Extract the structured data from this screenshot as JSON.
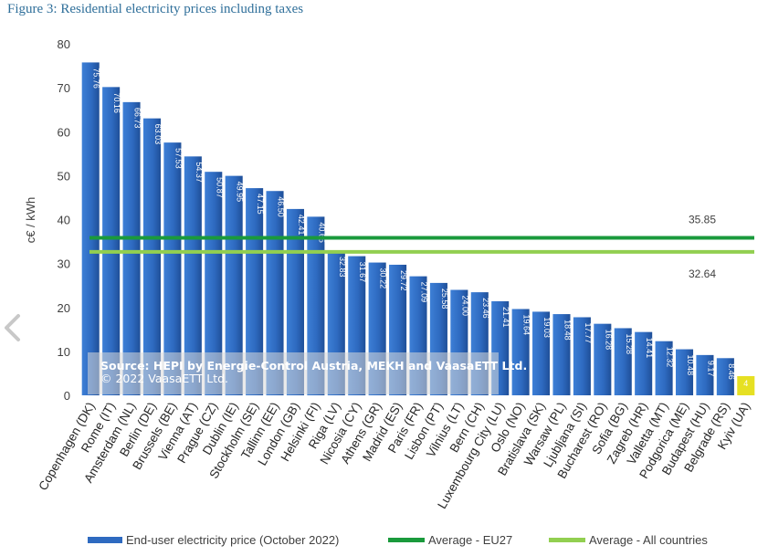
{
  "figure_title": "Figure 3: Residential electricity prices including taxes",
  "source_line1": "Source: HEPI by Energie-Control Austria, MEKH and VaasaETT Ltd.",
  "source_line2": "© 2022 VaasaETT Ltd.",
  "colors": {
    "bar": "#2e6ac0",
    "eu27": "#1a9a3c",
    "all": "#92cf50",
    "kyiv": "#e6e023"
  },
  "icons": {
    "prev": "chevron-left-icon"
  },
  "chart_data": {
    "type": "bar",
    "ylabel": "c€ / kWh",
    "ylim": [
      0,
      80
    ],
    "yticks": [
      0,
      10,
      20,
      30,
      40,
      50,
      60,
      70,
      80
    ],
    "categories": [
      "Copenhagen (DK)",
      "Rome (IT)",
      "Amsterdam (NL)",
      "Berlin (DE)",
      "Brussels (BE)",
      "Vienna (AT)",
      "Prague (CZ)",
      "Dublin (IE)",
      "Stockholm (SE)",
      "Tallinn (EE)",
      "London (GB)",
      "Helsinki (FI)",
      "Riga (LV)",
      "Nicosia (CY)",
      "Athens (GR)",
      "Madrid (ES)",
      "Paris (FR)",
      "Lisbon (PT)",
      "Vilnius (LT)",
      "Bern (CH)",
      "Luxembourg City (LU)",
      "Oslo (NO)",
      "Bratislava (SK)",
      "Warsaw (PL)",
      "Ljubljana (SI)",
      "Bucharest (RO)",
      "Sofia (BG)",
      "Zagreb (HR)",
      "Valletta (MT)",
      "Podgorica (ME)",
      "Budapest (HU)",
      "Belgrade (RS)",
      "Kyiv (UA)"
    ],
    "series": [
      {
        "name": "End-user electricity price (October 2022)",
        "type": "bar",
        "values": [
          75.76,
          70.16,
          66.73,
          63.03,
          57.53,
          54.37,
          50.87,
          49.95,
          47.15,
          46.5,
          42.41,
          40.65,
          32.83,
          31.67,
          30.22,
          29.72,
          27.09,
          25.58,
          24.0,
          23.46,
          21.41,
          19.64,
          19.03,
          18.48,
          17.77,
          16.28,
          15.28,
          14.41,
          12.32,
          10.48,
          9.17,
          8.46,
          4.37
        ],
        "labels": [
          "75.76",
          "70.16",
          "66.73",
          "63.03",
          "57.53",
          "54.37",
          "50.87",
          "49.95",
          "47.15",
          "46.50",
          "42.41",
          "40.65",
          "32.83",
          "31.67",
          "30.22",
          "29.72",
          "27.09",
          "25.58",
          "24.00",
          "23.46",
          "21.41",
          "19.64",
          "19.03",
          "18.48",
          "17.77",
          "16.28",
          "15.28",
          "14.41",
          "12.32",
          "10.48",
          "9.17",
          "8.46",
          "4"
        ]
      },
      {
        "name": "Average - EU27",
        "type": "line",
        "value": 35.85,
        "label": "35.85"
      },
      {
        "name": "Average - All countries",
        "type": "line",
        "value": 32.64,
        "label": "32.64"
      }
    ],
    "grid": false,
    "legend_position": "bottom"
  }
}
